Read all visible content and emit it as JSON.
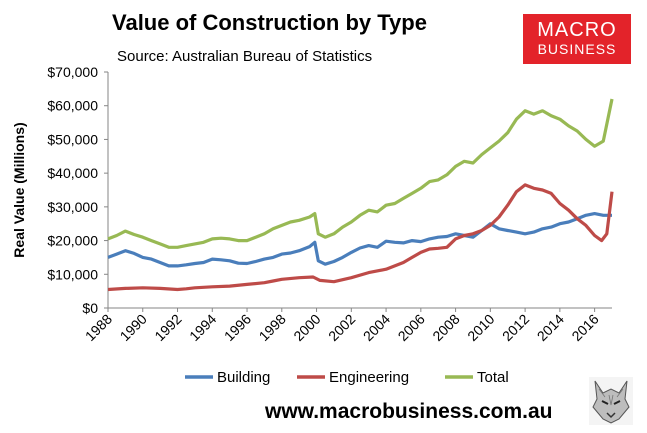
{
  "header": {
    "title": "Value of Construction by Type",
    "subtitle": "Source: Australian Bureau of Statistics"
  },
  "logo": {
    "line1": "MACRO",
    "line2": "BUSINESS"
  },
  "footer": {
    "website": "www.macrobusiness.com.au"
  },
  "colors": {
    "Building": "#4a7ebb",
    "Engineering": "#be4b48",
    "Total": "#98b954"
  },
  "chart_data": {
    "type": "line",
    "ylabel": "Real Value (Millions)",
    "xlabel": "",
    "ylim": [
      0,
      70000
    ],
    "xlim": [
      1988,
      2017
    ],
    "y_ticks": [
      "$0",
      "$10,000",
      "$20,000",
      "$30,000",
      "$40,000",
      "$50,000",
      "$60,000",
      "$70,000"
    ],
    "y_tick_values": [
      0,
      10000,
      20000,
      30000,
      40000,
      50000,
      60000,
      70000
    ],
    "x_ticks": [
      "1988",
      "1990",
      "1992",
      "1994",
      "1996",
      "1998",
      "2000",
      "2002",
      "2004",
      "2006",
      "2008",
      "2010",
      "2012",
      "2014",
      "2016"
    ],
    "x_tick_values": [
      1988,
      1990,
      1992,
      1994,
      1996,
      1998,
      2000,
      2002,
      2004,
      2006,
      2008,
      2010,
      2012,
      2014,
      2016
    ],
    "grid": false,
    "legend": "bottom",
    "series": [
      {
        "name": "Building",
        "points": [
          [
            1988,
            15000
          ],
          [
            1988.5,
            16000
          ],
          [
            1989,
            17000
          ],
          [
            1989.5,
            16200
          ],
          [
            1990,
            15000
          ],
          [
            1990.5,
            14500
          ],
          [
            1991,
            13500
          ],
          [
            1991.5,
            12500
          ],
          [
            1992,
            12500
          ],
          [
            1992.5,
            12800
          ],
          [
            1993,
            13200
          ],
          [
            1993.5,
            13500
          ],
          [
            1994,
            14500
          ],
          [
            1994.5,
            14300
          ],
          [
            1995,
            14000
          ],
          [
            1995.5,
            13300
          ],
          [
            1996,
            13200
          ],
          [
            1996.5,
            13800
          ],
          [
            1997,
            14500
          ],
          [
            1997.5,
            15000
          ],
          [
            1998,
            16000
          ],
          [
            1998.5,
            16300
          ],
          [
            1999,
            17000
          ],
          [
            1999.6,
            18200
          ],
          [
            1999.9,
            19500
          ],
          [
            2000.1,
            14000
          ],
          [
            2000.5,
            13000
          ],
          [
            2001,
            13800
          ],
          [
            2001.5,
            15000
          ],
          [
            2002,
            16500
          ],
          [
            2002.5,
            17800
          ],
          [
            2003,
            18500
          ],
          [
            2003.5,
            18000
          ],
          [
            2004,
            19800
          ],
          [
            2004.5,
            19500
          ],
          [
            2005,
            19300
          ],
          [
            2005.5,
            20000
          ],
          [
            2006,
            19700
          ],
          [
            2006.5,
            20500
          ],
          [
            2007,
            21000
          ],
          [
            2007.5,
            21200
          ],
          [
            2008,
            22000
          ],
          [
            2008.5,
            21500
          ],
          [
            2009,
            21000
          ],
          [
            2009.5,
            23000
          ],
          [
            2010,
            25000
          ],
          [
            2010.5,
            23500
          ],
          [
            2011,
            23000
          ],
          [
            2011.5,
            22500
          ],
          [
            2012,
            22000
          ],
          [
            2012.5,
            22500
          ],
          [
            2013,
            23500
          ],
          [
            2013.5,
            24000
          ],
          [
            2014,
            25000
          ],
          [
            2014.5,
            25500
          ],
          [
            2015,
            26500
          ],
          [
            2015.5,
            27500
          ],
          [
            2016,
            28000
          ],
          [
            2016.5,
            27500
          ],
          [
            2017,
            27500
          ]
        ]
      },
      {
        "name": "Engineering",
        "points": [
          [
            1988,
            5500
          ],
          [
            1989,
            5800
          ],
          [
            1990,
            6000
          ],
          [
            1991,
            5800
          ],
          [
            1992,
            5500
          ],
          [
            1992.5,
            5700
          ],
          [
            1993,
            6000
          ],
          [
            1994,
            6300
          ],
          [
            1995,
            6500
          ],
          [
            1996,
            7000
          ],
          [
            1997,
            7500
          ],
          [
            1997.5,
            8000
          ],
          [
            1998,
            8500
          ],
          [
            1999,
            9000
          ],
          [
            1999.8,
            9200
          ],
          [
            2000.2,
            8200
          ],
          [
            2001,
            7800
          ],
          [
            2002,
            9000
          ],
          [
            2003,
            10500
          ],
          [
            2004,
            11500
          ],
          [
            2005,
            13500
          ],
          [
            2005.5,
            15000
          ],
          [
            2006,
            16500
          ],
          [
            2006.5,
            17500
          ],
          [
            2007,
            17700
          ],
          [
            2007.5,
            18000
          ],
          [
            2008,
            20500
          ],
          [
            2008.5,
            21500
          ],
          [
            2009,
            22000
          ],
          [
            2009.5,
            23000
          ],
          [
            2010,
            24500
          ],
          [
            2010.5,
            27000
          ],
          [
            2011,
            30500
          ],
          [
            2011.5,
            34500
          ],
          [
            2012,
            36500
          ],
          [
            2012.5,
            35500
          ],
          [
            2013,
            35000
          ],
          [
            2013.5,
            34000
          ],
          [
            2014,
            31000
          ],
          [
            2014.5,
            29000
          ],
          [
            2015,
            26500
          ],
          [
            2015.5,
            24500
          ],
          [
            2016,
            21500
          ],
          [
            2016.4,
            20000
          ],
          [
            2016.7,
            22000
          ],
          [
            2017,
            34500
          ]
        ]
      },
      {
        "name": "Total",
        "points": [
          [
            1988,
            20500
          ],
          [
            1988.5,
            21500
          ],
          [
            1989,
            22800
          ],
          [
            1989.5,
            21800
          ],
          [
            1990,
            21000
          ],
          [
            1990.5,
            20000
          ],
          [
            1991,
            19000
          ],
          [
            1991.5,
            18000
          ],
          [
            1992,
            18000
          ],
          [
            1992.5,
            18500
          ],
          [
            1993,
            19000
          ],
          [
            1993.5,
            19500
          ],
          [
            1994,
            20500
          ],
          [
            1994.5,
            20700
          ],
          [
            1995,
            20500
          ],
          [
            1995.5,
            20000
          ],
          [
            1996,
            20000
          ],
          [
            1996.5,
            21000
          ],
          [
            1997,
            22000
          ],
          [
            1997.5,
            23500
          ],
          [
            1998,
            24500
          ],
          [
            1998.5,
            25500
          ],
          [
            1999,
            26000
          ],
          [
            1999.6,
            27000
          ],
          [
            1999.9,
            28000
          ],
          [
            2000.1,
            22000
          ],
          [
            2000.5,
            21000
          ],
          [
            2001,
            22000
          ],
          [
            2001.5,
            24000
          ],
          [
            2002,
            25500
          ],
          [
            2002.5,
            27500
          ],
          [
            2003,
            29000
          ],
          [
            2003.5,
            28500
          ],
          [
            2004,
            30500
          ],
          [
            2004.5,
            31000
          ],
          [
            2005,
            32500
          ],
          [
            2005.5,
            34000
          ],
          [
            2006,
            35500
          ],
          [
            2006.5,
            37500
          ],
          [
            2007,
            38000
          ],
          [
            2007.5,
            39500
          ],
          [
            2008,
            42000
          ],
          [
            2008.5,
            43500
          ],
          [
            2009,
            43000
          ],
          [
            2009.5,
            45500
          ],
          [
            2010,
            47500
          ],
          [
            2010.5,
            49500
          ],
          [
            2011,
            52000
          ],
          [
            2011.5,
            56000
          ],
          [
            2012,
            58500
          ],
          [
            2012.5,
            57500
          ],
          [
            2013,
            58500
          ],
          [
            2013.5,
            57000
          ],
          [
            2014,
            56000
          ],
          [
            2014.5,
            54000
          ],
          [
            2015,
            52500
          ],
          [
            2015.5,
            50000
          ],
          [
            2016,
            48000
          ],
          [
            2016.5,
            49500
          ],
          [
            2017,
            62000
          ]
        ]
      }
    ]
  }
}
